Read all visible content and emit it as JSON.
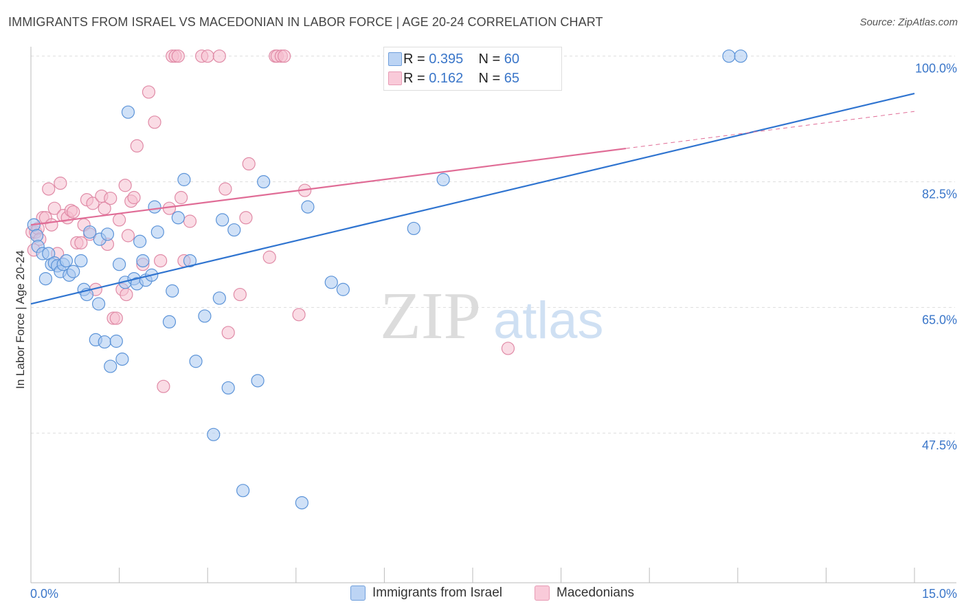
{
  "title": "IMMIGRANTS FROM ISRAEL VS MACEDONIAN IN LABOR FORCE | AGE 20-24 CORRELATION CHART",
  "source": "Source: ZipAtlas.com",
  "watermark": {
    "zip": "ZIP",
    "atlas": "atlas"
  },
  "legend_top": {
    "rows": [
      {
        "r_label": "R =",
        "r_value": "0.395",
        "n_label": "N =",
        "n_value": "60"
      },
      {
        "r_label": "R =",
        "r_value": "0.162",
        "n_label": "N =",
        "n_value": "65"
      }
    ]
  },
  "legend_bottom": {
    "series1": "Immigrants from Israel",
    "series2": "Macedonians"
  },
  "colors": {
    "blue_fill": "#a9c8f0",
    "blue_stroke": "#5b93d8",
    "blue_line": "#2f74d0",
    "pink_fill": "#f6bfd0",
    "pink_stroke": "#e08aa6",
    "pink_line": "#e06c96",
    "tick_text": "#3a76c9",
    "grid": "#dddddd"
  },
  "chart_data": {
    "type": "scatter",
    "title": "IMMIGRANTS FROM ISRAEL VS MACEDONIAN IN LABOR FORCE | AGE 20-24 CORRELATION CHART",
    "xlabel": "",
    "ylabel": "In Labor Force | Age 20-24",
    "xlim": [
      0,
      15
    ],
    "ylim": [
      28,
      101.5
    ],
    "x_tick_labels": [
      "0.0%",
      "15.0%"
    ],
    "y_ticks": [
      47.5,
      65.0,
      82.5,
      100.0
    ],
    "y_tick_labels": [
      "47.5%",
      "65.0%",
      "82.5%",
      "100.0%"
    ],
    "series": [
      {
        "name": "Immigrants from Israel",
        "trend": {
          "x0": 0,
          "y0": 65.5,
          "x1": 15,
          "y1": 94.8,
          "solid_until": 15
        },
        "points": [
          [
            0.05,
            76.5
          ],
          [
            0.1,
            75.0
          ],
          [
            0.12,
            73.5
          ],
          [
            0.2,
            72.5
          ],
          [
            0.25,
            69.0
          ],
          [
            0.3,
            72.5
          ],
          [
            0.35,
            71.0
          ],
          [
            0.4,
            71.2
          ],
          [
            0.45,
            70.8
          ],
          [
            0.5,
            70.0
          ],
          [
            0.55,
            71.0
          ],
          [
            0.6,
            71.5
          ],
          [
            0.65,
            69.5
          ],
          [
            0.72,
            70.0
          ],
          [
            0.85,
            71.5
          ],
          [
            0.9,
            67.5
          ],
          [
            0.95,
            66.8
          ],
          [
            1.0,
            75.5
          ],
          [
            1.1,
            60.5
          ],
          [
            1.15,
            65.5
          ],
          [
            1.17,
            74.5
          ],
          [
            1.25,
            60.2
          ],
          [
            1.3,
            75.2
          ],
          [
            1.35,
            56.8
          ],
          [
            1.45,
            60.3
          ],
          [
            1.5,
            71.0
          ],
          [
            1.55,
            57.8
          ],
          [
            1.6,
            68.5
          ],
          [
            1.65,
            92.2
          ],
          [
            1.75,
            69.0
          ],
          [
            1.8,
            68.3
          ],
          [
            1.85,
            74.2
          ],
          [
            1.9,
            71.5
          ],
          [
            1.95,
            68.8
          ],
          [
            2.05,
            69.5
          ],
          [
            2.1,
            79.0
          ],
          [
            2.15,
            75.5
          ],
          [
            2.35,
            63.0
          ],
          [
            2.4,
            67.3
          ],
          [
            2.5,
            77.5
          ],
          [
            2.6,
            82.8
          ],
          [
            2.7,
            71.5
          ],
          [
            2.8,
            57.5
          ],
          [
            2.95,
            63.8
          ],
          [
            3.1,
            47.3
          ],
          [
            3.2,
            66.3
          ],
          [
            3.25,
            77.2
          ],
          [
            3.35,
            53.8
          ],
          [
            3.45,
            75.8
          ],
          [
            3.6,
            39.5
          ],
          [
            3.85,
            54.8
          ],
          [
            3.95,
            82.5
          ],
          [
            4.6,
            37.8
          ],
          [
            4.7,
            79.0
          ],
          [
            5.1,
            68.5
          ],
          [
            5.3,
            67.5
          ],
          [
            6.5,
            76.0
          ],
          [
            7.0,
            82.8
          ],
          [
            11.85,
            100.0
          ],
          [
            12.05,
            100.0
          ]
        ]
      },
      {
        "name": "Macedonians",
        "trend": {
          "x0": 0,
          "y0": 76.5,
          "x1": 15,
          "y1": 92.3,
          "solid_until": 10.1
        },
        "points": [
          [
            0.02,
            75.5
          ],
          [
            0.05,
            73.0
          ],
          [
            0.08,
            75.5
          ],
          [
            0.12,
            76.0
          ],
          [
            0.15,
            74.5
          ],
          [
            0.2,
            77.5
          ],
          [
            0.25,
            77.5
          ],
          [
            0.3,
            81.5
          ],
          [
            0.35,
            76.5
          ],
          [
            0.4,
            78.8
          ],
          [
            0.45,
            72.5
          ],
          [
            0.5,
            82.3
          ],
          [
            0.55,
            77.8
          ],
          [
            0.62,
            77.5
          ],
          [
            0.68,
            78.5
          ],
          [
            0.72,
            78.3
          ],
          [
            0.78,
            74.0
          ],
          [
            0.85,
            74.0
          ],
          [
            0.9,
            76.5
          ],
          [
            0.95,
            80.0
          ],
          [
            1.0,
            75.2
          ],
          [
            1.05,
            79.5
          ],
          [
            1.1,
            67.5
          ],
          [
            1.2,
            80.5
          ],
          [
            1.25,
            78.8
          ],
          [
            1.3,
            73.8
          ],
          [
            1.35,
            80.2
          ],
          [
            1.4,
            63.5
          ],
          [
            1.45,
            63.5
          ],
          [
            1.5,
            77.2
          ],
          [
            1.55,
            67.5
          ],
          [
            1.6,
            82.0
          ],
          [
            1.62,
            66.8
          ],
          [
            1.65,
            75.0
          ],
          [
            1.7,
            79.8
          ],
          [
            1.75,
            80.3
          ],
          [
            1.8,
            87.5
          ],
          [
            1.9,
            71.0
          ],
          [
            2.0,
            95.0
          ],
          [
            2.1,
            90.8
          ],
          [
            2.2,
            71.5
          ],
          [
            2.25,
            54.0
          ],
          [
            2.4,
            100.0
          ],
          [
            2.45,
            100.0
          ],
          [
            2.5,
            100.0
          ],
          [
            2.55,
            80.3
          ],
          [
            2.6,
            71.5
          ],
          [
            2.7,
            77.0
          ],
          [
            2.9,
            100.0
          ],
          [
            3.0,
            100.0
          ],
          [
            3.2,
            100.0
          ],
          [
            3.3,
            81.5
          ],
          [
            3.35,
            61.5
          ],
          [
            3.55,
            66.8
          ],
          [
            3.65,
            77.5
          ],
          [
            3.7,
            85.0
          ],
          [
            4.05,
            72.0
          ],
          [
            4.15,
            100.0
          ],
          [
            4.18,
            100.0
          ],
          [
            4.25,
            100.0
          ],
          [
            4.3,
            100.0
          ],
          [
            4.55,
            64.0
          ],
          [
            4.65,
            81.3
          ],
          [
            8.1,
            59.3
          ],
          [
            2.35,
            78.8
          ]
        ]
      }
    ]
  }
}
